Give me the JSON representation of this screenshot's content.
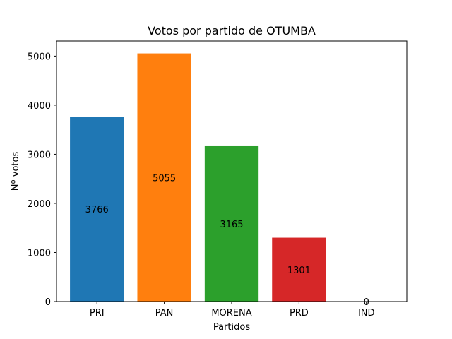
{
  "chart_data": {
    "type": "bar",
    "title": "Votos por partido de OTUMBA",
    "xlabel": "Partidos",
    "ylabel": "Nº votos",
    "categories": [
      "PRI",
      "PAN",
      "MORENA",
      "PRD",
      "IND"
    ],
    "values": [
      3766,
      5055,
      3165,
      1301,
      0
    ],
    "colors": [
      "#1f77b4",
      "#ff7f0e",
      "#2ca02c",
      "#d62728",
      "#9467bd"
    ],
    "ylim": [
      0,
      5307.75
    ],
    "yticks": [
      0,
      1000,
      2000,
      3000,
      4000,
      5000
    ],
    "grid": false,
    "legend": "none"
  }
}
